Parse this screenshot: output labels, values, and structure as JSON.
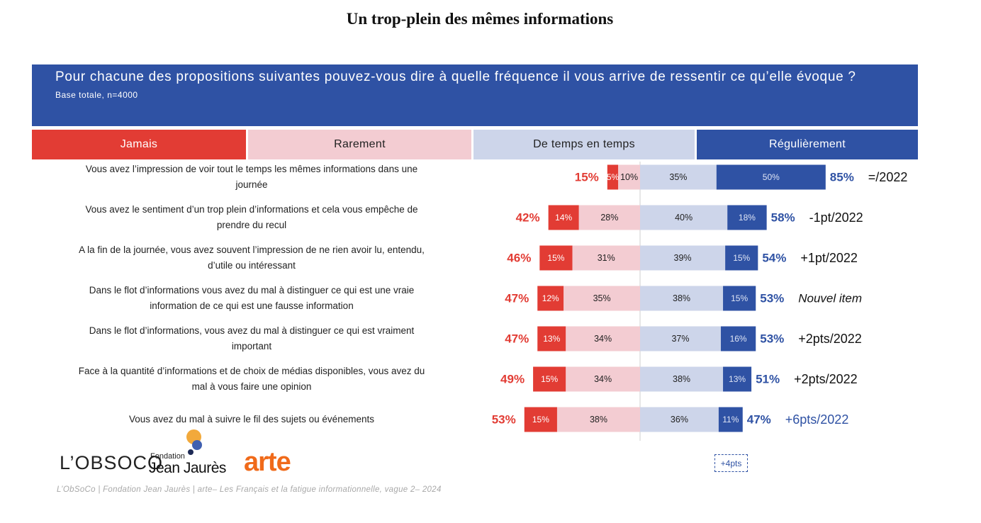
{
  "title": "Un trop-plein des mêmes informations",
  "banner": {
    "question": "Pour chacune des propositions suivantes pouvez-vous dire à quelle fréquence il vous arrive de ressentir ce qu’elle évoque ?",
    "base": "Base totale, n=4000"
  },
  "legend": {
    "jamais": "Jamais",
    "rarement": "Rarement",
    "de_temps": "De temps en temps",
    "regulierement": "Régulièrement"
  },
  "colors": {
    "jamais": "#e23c34",
    "rarement": "#f3ccd2",
    "de_temps": "#cdd5ea",
    "regulierement": "#2f52a4",
    "neg_total": "#e23c34",
    "pos_total": "#2f52a4"
  },
  "chart_data": {
    "type": "bar",
    "orientation": "horizontal-diverging-stacked",
    "categories": [
      [
        "Vous avez l’impression de voir tout le temps les mêmes informations dans une",
        "journée"
      ],
      [
        "Vous avez le sentiment d’un trop plein d’informations et cela vous empêche de",
        "prendre du recul"
      ],
      [
        "A la fin de la journée, vous avez souvent l’impression de ne rien avoir lu, entendu,",
        "d’utile ou intéressant"
      ],
      [
        "Dans le flot d’informations vous avez du mal à distinguer ce qui est une vraie",
        "information de ce qui est une fausse information"
      ],
      [
        "Dans le flot d’informations, vous avez du mal à distinguer ce qui est vraiment",
        "important"
      ],
      [
        "Face à la quantité d’informations et de choix de médias disponibles, vous avez du",
        "mal à vous faire une opinion"
      ],
      [
        "Vous avez du mal à suivre le fil des sujets ou événements"
      ]
    ],
    "series": [
      {
        "name": "Jamais",
        "values": [
          5,
          14,
          15,
          12,
          13,
          15,
          15
        ]
      },
      {
        "name": "Rarement",
        "values": [
          10,
          28,
          31,
          35,
          34,
          34,
          38
        ]
      },
      {
        "name": "De temps en temps",
        "values": [
          35,
          40,
          39,
          38,
          37,
          38,
          36
        ]
      },
      {
        "name": "Régulièrement",
        "values": [
          50,
          18,
          15,
          15,
          16,
          13,
          11
        ]
      }
    ],
    "neg_totals": [
      "15%",
      "42%",
      "46%",
      "47%",
      "47%",
      "49%",
      "53%"
    ],
    "pos_totals": [
      "85%",
      "58%",
      "54%",
      "53%",
      "53%",
      "51%",
      "47%"
    ],
    "evolution": [
      "=/2022",
      "-1pt/2022",
      "+1pt/2022",
      "Nouvel item",
      "+2pts/2022",
      "+2pts/2022",
      "+6pts/2022"
    ]
  },
  "footer": {
    "obsoco_logo": "L’OBSOCO",
    "fondation_small": "Fondation",
    "fondation_name": "Jean Jaurès",
    "arte_logo": "arte",
    "source": "L’ObSoCo | Fondation Jean Jaurès | arte– Les Français et la fatigue informationnelle, vague 2– 2024",
    "delta_box": "+4pts"
  }
}
